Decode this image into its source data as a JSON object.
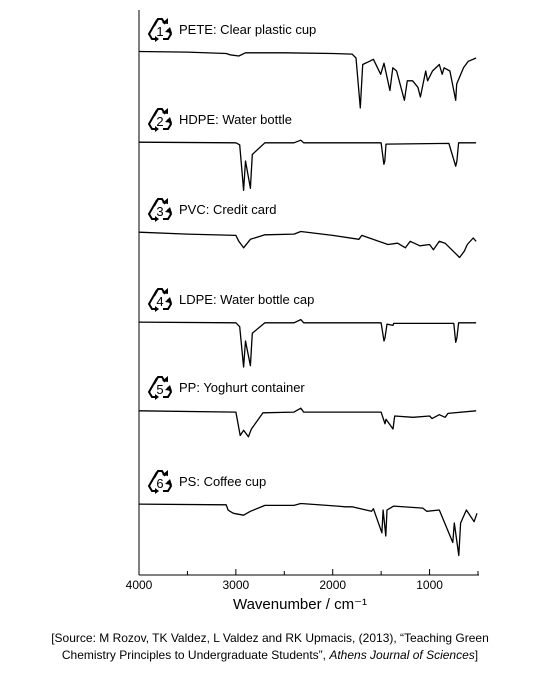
{
  "chart_data": {
    "type": "line",
    "x_label": "Wavenumber / cm⁻¹",
    "xlim": [
      4000,
      500
    ],
    "xticks": [
      4000,
      3000,
      2000,
      1000
    ],
    "xminor": [
      3500,
      2500,
      1500,
      500
    ],
    "ylim": [
      0,
      100
    ],
    "series": [
      {
        "code": "1",
        "name": "PETE: Clear plastic cup",
        "color": "#000000",
        "x": [
          4000,
          3500,
          3100,
          3060,
          2970,
          2900,
          2500,
          2000,
          1800,
          1760,
          1715,
          1690,
          1620,
          1580,
          1505,
          1470,
          1410,
          1380,
          1340,
          1260,
          1230,
          1175,
          1120,
          1095,
          1040,
          1020,
          970,
          900,
          870,
          850,
          790,
          730,
          720,
          650,
          600,
          520
        ],
        "values": [
          90,
          89,
          87,
          85,
          83,
          88,
          88,
          87,
          86,
          80,
          3,
          70,
          75,
          78,
          55,
          72,
          30,
          65,
          60,
          15,
          45,
          45,
          35,
          20,
          60,
          45,
          60,
          70,
          55,
          65,
          60,
          15,
          40,
          65,
          75,
          80
        ]
      },
      {
        "code": "2",
        "name": "HDPE: Water bottle",
        "color": "#000000",
        "x": [
          4000,
          3000,
          2960,
          2920,
          2900,
          2850,
          2830,
          2700,
          2400,
          2330,
          2300,
          1500,
          1472,
          1462,
          1450,
          800,
          730,
          718,
          700,
          520
        ],
        "values": [
          89,
          88,
          85,
          15,
          60,
          18,
          70,
          88,
          88,
          92,
          88,
          88,
          55,
          60,
          86,
          87,
          52,
          60,
          88,
          88
        ]
      },
      {
        "code": "3",
        "name": "PVC: Credit card",
        "color": "#000000",
        "x": [
          4000,
          3500,
          3000,
          2970,
          2920,
          2850,
          2700,
          2400,
          2330,
          2000,
          1730,
          1700,
          1430,
          1330,
          1250,
          1200,
          1100,
          1000,
          960,
          900,
          840,
          690,
          640,
          610,
          550,
          520
        ],
        "values": [
          89,
          86,
          84,
          75,
          65,
          78,
          85,
          86,
          90,
          84,
          78,
          84,
          70,
          72,
          65,
          75,
          68,
          70,
          62,
          75,
          72,
          50,
          60,
          70,
          80,
          75
        ]
      },
      {
        "code": "4",
        "name": "LDPE: Water bottle cap",
        "color": "#000000",
        "x": [
          4000,
          3000,
          2960,
          2920,
          2900,
          2850,
          2830,
          2700,
          2400,
          2330,
          2300,
          1500,
          1470,
          1460,
          1440,
          1378,
          1370,
          750,
          730,
          718,
          700,
          520
        ],
        "values": [
          89,
          88,
          82,
          20,
          60,
          22,
          72,
          88,
          88,
          93,
          88,
          88,
          60,
          65,
          86,
          84,
          87,
          87,
          58,
          65,
          88,
          88
        ]
      },
      {
        "code": "5",
        "name": "PP: Yoghurt container",
        "color": "#000000",
        "x": [
          4000,
          3000,
          2955,
          2920,
          2870,
          2840,
          2720,
          2400,
          2330,
          2300,
          1500,
          1460,
          1450,
          1378,
          1360,
          1170,
          1000,
          975,
          900,
          840,
          810,
          520
        ],
        "values": [
          88,
          86,
          50,
          58,
          48,
          60,
          85,
          86,
          92,
          86,
          86,
          68,
          75,
          60,
          80,
          78,
          80,
          76,
          82,
          78,
          84,
          88
        ]
      },
      {
        "code": "6",
        "name": "PS: Coffee cup",
        "color": "#000000",
        "x": [
          4000,
          3100,
          3080,
          3060,
          3025,
          2920,
          2850,
          2700,
          2400,
          2330,
          1950,
          1870,
          1800,
          1600,
          1580,
          1492,
          1480,
          1452,
          1440,
          1370,
          1180,
          1070,
          1030,
          900,
          760,
          745,
          698,
          680,
          620,
          540,
          510
        ],
        "values": [
          89,
          88,
          80,
          78,
          75,
          72,
          78,
          87,
          87,
          90,
          86,
          85,
          85,
          78,
          82,
          45,
          80,
          40,
          80,
          86,
          84,
          83,
          78,
          80,
          30,
          60,
          10,
          60,
          80,
          62,
          75
        ]
      }
    ],
    "source": {
      "text": "[Source: M Rozov, TK Valdez, L Valdez and RK Upmacis, (2013), “Teaching Green",
      "text2": "Chemistry Principles to Undergraduate Students”, ",
      "journal": "Athens Journal of Sciences",
      "end": "]"
    }
  }
}
